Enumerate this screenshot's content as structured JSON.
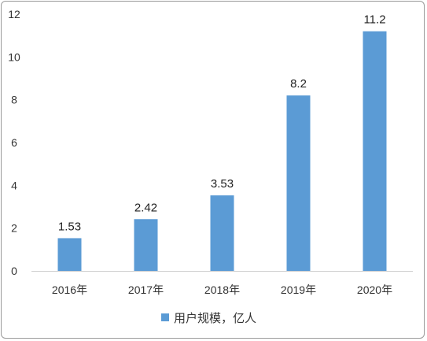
{
  "chart_data": {
    "type": "bar",
    "categories": [
      "2016年",
      "2017年",
      "2018年",
      "2019年",
      "2020年"
    ],
    "series": [
      {
        "name": "用户规模，亿人",
        "values": [
          1.53,
          2.42,
          3.53,
          8.2,
          11.2
        ],
        "labels": [
          "1.53",
          "2.42",
          "3.53",
          "8.2",
          "11.2"
        ]
      }
    ],
    "y_ticks": [
      "0",
      "2",
      "4",
      "6",
      "8",
      "10",
      "12"
    ],
    "ylim": [
      0,
      12
    ],
    "grid": false,
    "legend": "bottom",
    "bar_color": "#5b9bd5",
    "axis_color": "#d0d0d0"
  }
}
